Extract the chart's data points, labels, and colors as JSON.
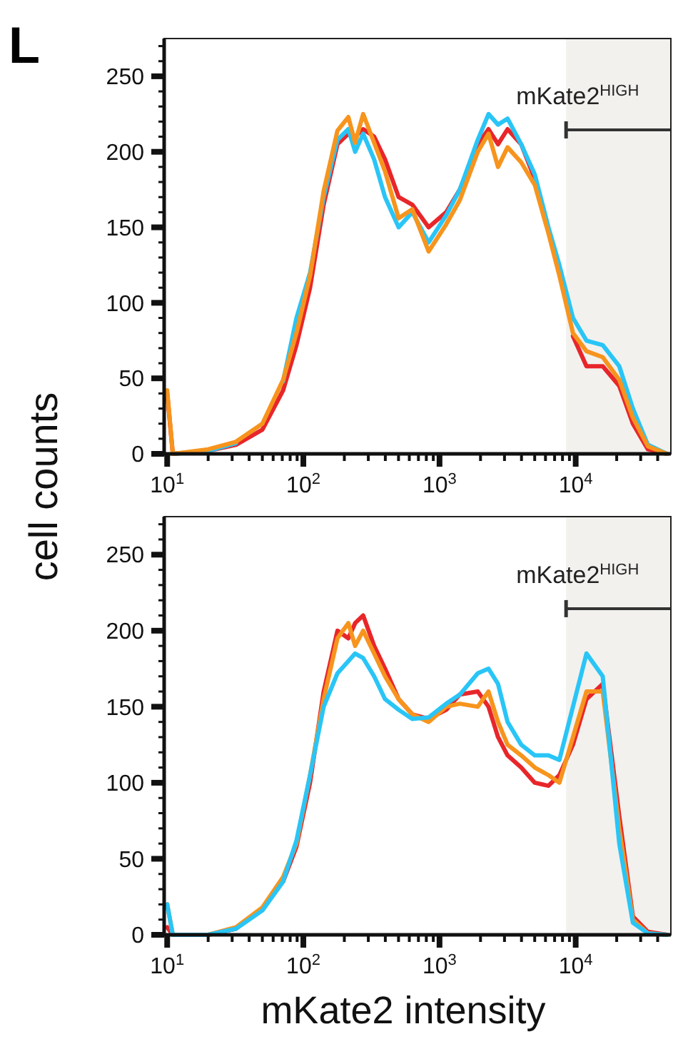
{
  "chart_data": [
    {
      "type": "line",
      "log": "x",
      "ylabel": "cell counts",
      "annotations": [
        "L"
      ],
      "x": [
        10,
        11,
        20,
        32,
        50,
        71,
        89,
        112,
        141,
        178,
        214,
        240,
        275,
        331,
        398,
        501,
        631,
        832,
        1120,
        1410,
        1910,
        2290,
        2690,
        3160,
        3980,
        5010,
        6310,
        7590,
        9550,
        12000,
        15800,
        20900,
        26300,
        33900,
        46800
      ],
      "series": [
        {
          "color": "#e8262a",
          "values": [
            40,
            0,
            2,
            6,
            16,
            42,
            72,
            110,
            165,
            205,
            212,
            210,
            215,
            210,
            195,
            170,
            165,
            150,
            160,
            175,
            205,
            215,
            205,
            215,
            205,
            182,
            null,
            null,
            78,
            58,
            58,
            45,
            20,
            3,
            0
          ]
        },
        {
          "color": "#29c5f6",
          "values": [
            null,
            0,
            2,
            7,
            null,
            48,
            90,
            120,
            170,
            208,
            215,
            200,
            212,
            195,
            170,
            150,
            160,
            140,
            158,
            175,
            208,
            225,
            218,
            222,
            205,
            185,
            150,
            125,
            90,
            75,
            72,
            58,
            30,
            6,
            0
          ]
        },
        {
          "color": "#f7941d",
          "values": [
            42,
            0,
            3,
            8,
            20,
            49,
            80,
            118,
            174,
            214,
            223,
            206,
            225,
            206,
            187,
            156,
            162,
            134,
            152,
            168,
            200,
            212,
            190,
            203,
            193,
            178,
            146,
            118,
            80,
            68,
            64,
            49,
            24,
            5,
            0
          ]
        }
      ],
      "xlim": [
        9.5,
        50000
      ],
      "ylim": [
        0,
        275
      ],
      "xticks": [
        {
          "value": 10,
          "label": "10$^{1}$"
        },
        {
          "value": 20,
          "label": null
        },
        {
          "value": 30,
          "label": null
        },
        {
          "value": 40,
          "label": null
        },
        {
          "value": 50,
          "label": null
        },
        {
          "value": 60,
          "label": null
        },
        {
          "value": 70,
          "label": null
        },
        {
          "value": 80,
          "label": null
        },
        {
          "value": 90,
          "label": null
        },
        {
          "value": 100,
          "label": "10$^{2}$"
        },
        {
          "value": 200,
          "label": null
        },
        {
          "value": 300,
          "label": null
        },
        {
          "value": 400,
          "label": null
        },
        {
          "value": 500,
          "label": null
        },
        {
          "value": 600,
          "label": null
        },
        {
          "value": 700,
          "label": null
        },
        {
          "value": 800,
          "label": null
        },
        {
          "value": 900,
          "label": null
        },
        {
          "value": 1000,
          "label": "10$^{3}$"
        },
        {
          "value": 2000,
          "label": null
        },
        {
          "value": 3000,
          "label": null
        },
        {
          "value": 4000,
          "label": null
        },
        {
          "value": 5000,
          "label": null
        },
        {
          "value": 6000,
          "label": null
        },
        {
          "value": 7000,
          "label": null
        },
        {
          "value": 8000,
          "label": null
        },
        {
          "value": 9000,
          "label": null
        },
        {
          "value": 10000,
          "label": "10$^{4}$"
        },
        {
          "value": 20000,
          "label": null
        },
        {
          "value": 30000,
          "label": null
        },
        {
          "value": 40000,
          "label": null
        }
      ],
      "yticks": [
        0,
        {
          "value": 10,
          "label": null
        },
        {
          "value": 20,
          "label": null
        },
        {
          "value": 30,
          "label": null
        },
        {
          "value": 40,
          "label": null
        },
        50,
        {
          "value": 60,
          "label": null
        },
        {
          "value": 70,
          "label": null
        },
        {
          "value": 80,
          "label": null
        },
        {
          "value": 90,
          "label": null
        },
        100,
        {
          "value": 110,
          "label": null
        },
        {
          "value": 120,
          "label": null
        },
        {
          "value": 130,
          "label": null
        },
        {
          "value": 140,
          "label": null
        },
        150,
        {
          "value": 160,
          "label": null
        },
        {
          "value": 170,
          "label": null
        },
        {
          "value": 180,
          "label": null
        },
        {
          "value": 190,
          "label": null
        },
        200,
        {
          "value": 210,
          "label": null
        },
        {
          "value": 220,
          "label": null
        },
        {
          "value": 230,
          "label": null
        },
        {
          "value": 240,
          "label": null
        },
        250,
        {
          "value": 260,
          "label": null
        },
        {
          "value": 270,
          "label": null
        }
      ],
      "bands": [
        {
          "axis": "x",
          "from": 8500,
          "to": 50000,
          "label": "mKate2$^{HIGH}$",
          "color": "#f2f1ee"
        }
      ]
    },
    {
      "type": "line",
      "log": "x",
      "xlabel": "mKate2 intensity",
      "x": [
        10,
        11,
        20,
        32,
        50,
        71,
        89,
        112,
        141,
        178,
        214,
        240,
        275,
        331,
        398,
        501,
        631,
        832,
        1120,
        1410,
        1910,
        2290,
        2690,
        3160,
        3980,
        5010,
        6310,
        7590,
        9550,
        12000,
        15800,
        20900,
        26300,
        33900,
        46800
      ],
      "series": [
        {
          "color": "#e8262a",
          "values": [
            5,
            0,
            0,
            4,
            null,
            35,
            58,
            100,
            160,
            200,
            195,
            205,
            210,
            190,
            175,
            155,
            145,
            142,
            148,
            158,
            160,
            150,
            130,
            118,
            110,
            100,
            98,
            105,
            125,
            155,
            165,
            78,
            12,
            2,
            0
          ]
        },
        {
          "color": "#f7941d",
          "values": [
            20,
            0,
            0,
            5,
            18,
            38,
            60,
            105,
            155,
            195,
            205,
            190,
            200,
            185,
            170,
            155,
            145,
            140,
            150,
            152,
            150,
            160,
            140,
            125,
            118,
            110,
            105,
            100,
            130,
            160,
            160,
            70,
            10,
            1,
            0
          ]
        },
        {
          "color": "#29c5f6",
          "values": [
            20,
            0,
            0,
            4,
            16,
            35,
            62,
            105,
            150,
            172,
            180,
            185,
            182,
            170,
            155,
            148,
            142,
            143,
            152,
            158,
            172,
            175,
            165,
            140,
            125,
            118,
            118,
            115,
            150,
            185,
            170,
            60,
            8,
            1,
            0
          ]
        }
      ],
      "xlim": [
        9.5,
        50000
      ],
      "ylim": [
        0,
        275
      ],
      "xticks": [
        {
          "value": 10,
          "label": "10$^{1}$"
        },
        {
          "value": 20,
          "label": null
        },
        {
          "value": 30,
          "label": null
        },
        {
          "value": 40,
          "label": null
        },
        {
          "value": 50,
          "label": null
        },
        {
          "value": 60,
          "label": null
        },
        {
          "value": 70,
          "label": null
        },
        {
          "value": 80,
          "label": null
        },
        {
          "value": 90,
          "label": null
        },
        {
          "value": 100,
          "label": "10$^{2}$"
        },
        {
          "value": 200,
          "label": null
        },
        {
          "value": 300,
          "label": null
        },
        {
          "value": 400,
          "label": null
        },
        {
          "value": 500,
          "label": null
        },
        {
          "value": 600,
          "label": null
        },
        {
          "value": 700,
          "label": null
        },
        {
          "value": 800,
          "label": null
        },
        {
          "value": 900,
          "label": null
        },
        {
          "value": 1000,
          "label": "10$^{3}$"
        },
        {
          "value": 2000,
          "label": null
        },
        {
          "value": 3000,
          "label": null
        },
        {
          "value": 4000,
          "label": null
        },
        {
          "value": 5000,
          "label": null
        },
        {
          "value": 6000,
          "label": null
        },
        {
          "value": 7000,
          "label": null
        },
        {
          "value": 8000,
          "label": null
        },
        {
          "value": 9000,
          "label": null
        },
        {
          "value": 10000,
          "label": "10$^{4}$"
        },
        {
          "value": 20000,
          "label": null
        },
        {
          "value": 30000,
          "label": null
        },
        {
          "value": 40000,
          "label": null
        }
      ],
      "yticks": [
        0,
        {
          "value": 10,
          "label": null
        },
        {
          "value": 20,
          "label": null
        },
        {
          "value": 30,
          "label": null
        },
        {
          "value": 40,
          "label": null
        },
        50,
        {
          "value": 60,
          "label": null
        },
        {
          "value": 70,
          "label": null
        },
        {
          "value": 80,
          "label": null
        },
        {
          "value": 90,
          "label": null
        },
        100,
        {
          "value": 110,
          "label": null
        },
        {
          "value": 120,
          "label": null
        },
        {
          "value": 130,
          "label": null
        },
        {
          "value": 140,
          "label": null
        },
        150,
        {
          "value": 160,
          "label": null
        },
        {
          "value": 170,
          "label": null
        },
        {
          "value": 180,
          "label": null
        },
        {
          "value": 190,
          "label": null
        },
        200,
        {
          "value": 210,
          "label": null
        },
        {
          "value": 220,
          "label": null
        },
        {
          "value": 230,
          "label": null
        },
        {
          "value": 240,
          "label": null
        },
        250,
        {
          "value": 260,
          "label": null
        },
        {
          "value": 270,
          "label": null
        }
      ],
      "bands": [
        {
          "axis": "x",
          "from": 8500,
          "to": 50000,
          "label": "mKate2$^{HIGH}$",
          "color": "#f2f1ee"
        }
      ]
    }
  ]
}
